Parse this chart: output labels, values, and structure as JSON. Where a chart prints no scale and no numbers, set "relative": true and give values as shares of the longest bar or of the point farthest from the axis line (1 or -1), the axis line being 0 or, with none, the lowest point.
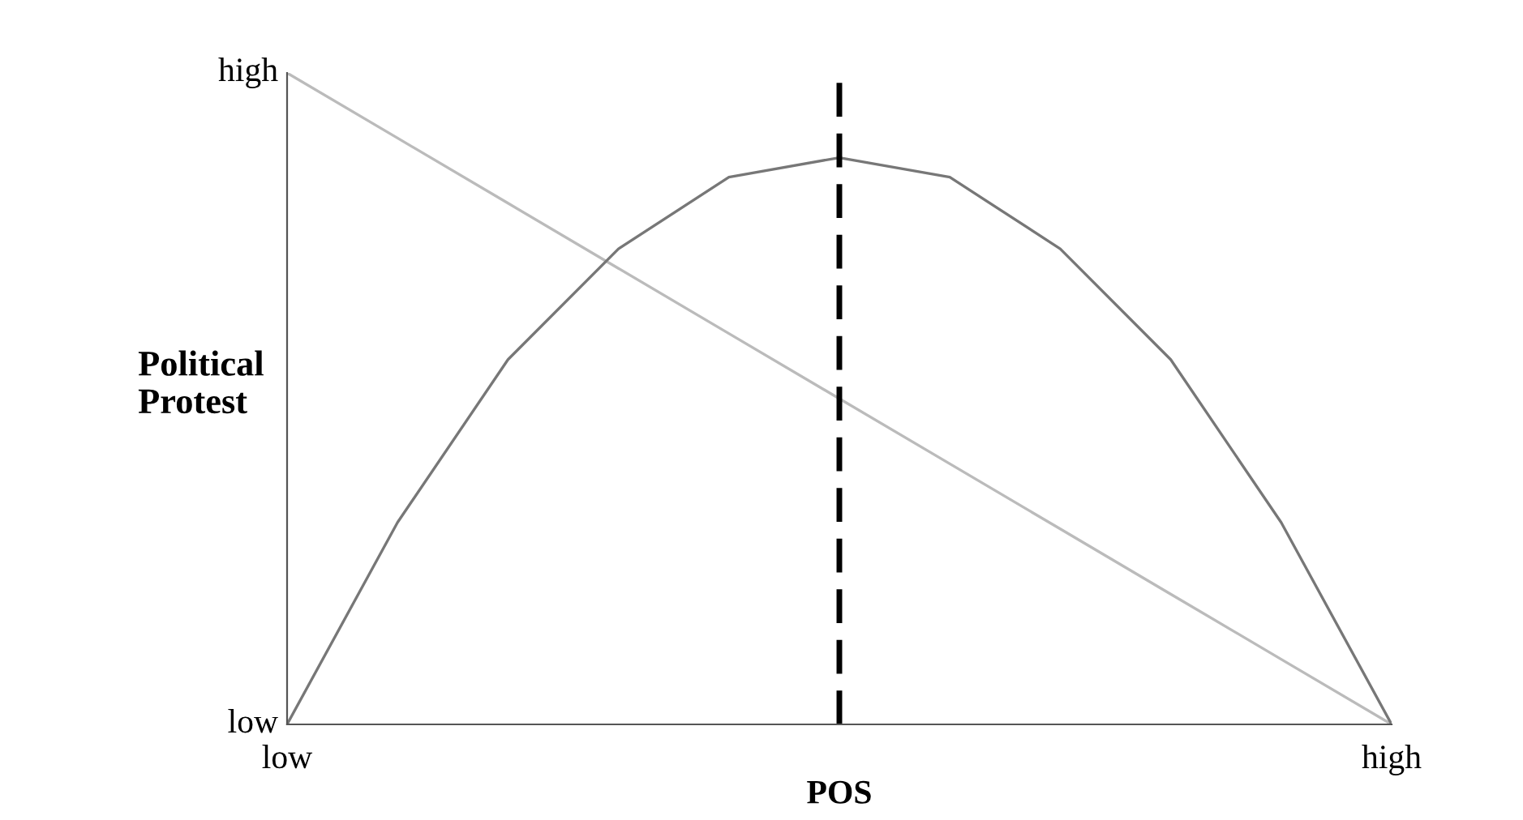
{
  "chart_data": {
    "type": "line",
    "xlabel": "POS",
    "ylabel": "Political\nProtest",
    "relative": true,
    "categories": [
      "low",
      null,
      null,
      null,
      null,
      null,
      null,
      null,
      null,
      null,
      "high"
    ],
    "annotations": [
      "low",
      "high"
    ],
    "series": [
      {
        "color": "#bbbbbb",
        "values": [
          1,
          0.9,
          0.8,
          0.7,
          0.6,
          0.5,
          0.4,
          0.3,
          0.2,
          0.1,
          0
        ]
      },
      {
        "color": "#777777",
        "values": [
          0,
          0.31,
          0.56,
          0.73,
          0.84,
          0.87,
          0.84,
          0.73,
          0.56,
          0.31,
          0
        ]
      }
    ],
    "marker": "none"
  }
}
